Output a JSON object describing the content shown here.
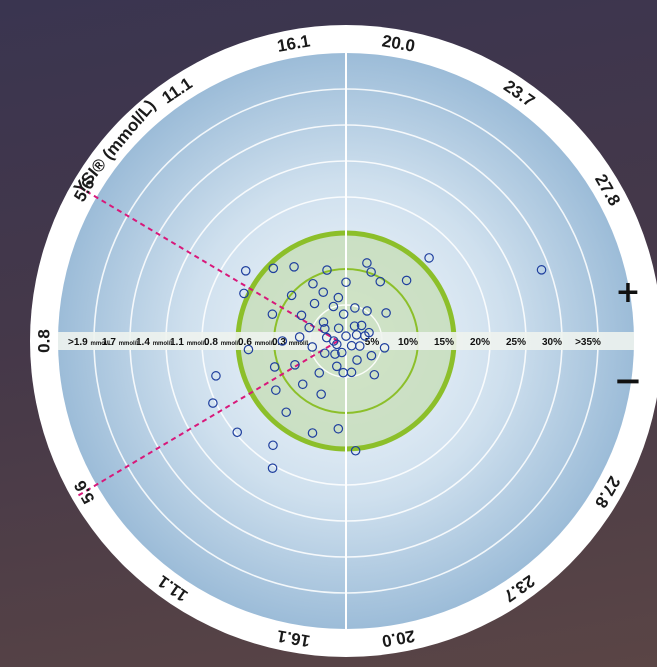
{
  "chart_data": {
    "type": "scatter",
    "title": "",
    "axis_title": "YSI® (mmol/L)",
    "ring_labels": [
      {
        "text": "0.8",
        "angle": 180
      },
      {
        "text": "5.6",
        "angle": 150
      },
      {
        "text": "11.1",
        "angle": 124
      },
      {
        "text": "16.1",
        "angle": 100
      },
      {
        "text": "20.0",
        "angle": 80
      },
      {
        "text": "23.7",
        "angle": 55
      },
      {
        "text": "27.8",
        "angle": 30
      },
      {
        "text": "5.6",
        "angle": 210
      },
      {
        "text": "11.1",
        "angle": 235
      },
      {
        "text": "16.1",
        "angle": 260
      },
      {
        "text": "20.0",
        "angle": 280
      },
      {
        "text": "23.7",
        "angle": 305
      },
      {
        "text": "27.8",
        "angle": 330
      }
    ],
    "left_scale": [
      {
        "value": ">1.9",
        "unit": "mmol/L"
      },
      {
        "value": "1.7",
        "unit": "mmol/L"
      },
      {
        "value": "1.4",
        "unit": "mmol/L"
      },
      {
        "value": "1.1",
        "unit": "mmol/L"
      },
      {
        "value": "0.8",
        "unit": "mmol/L"
      },
      {
        "value": "0.6",
        "unit": "mmol/L"
      },
      {
        "value": "0.3",
        "unit": "mmol/L"
      }
    ],
    "right_scale": [
      "5%",
      "10%",
      "15%",
      "20%",
      "25%",
      "30%",
      ">35%"
    ],
    "signs": {
      "plus": "+",
      "minus": "−"
    },
    "ring_count": 8,
    "acceptance_zone_ring": 3,
    "inner_zone_ring": 2,
    "boundary_angles": [
      150,
      210
    ],
    "ring_colors": {
      "outer": "#ffffff",
      "field": "#a9c6df",
      "zone": "#c4dcb4",
      "zone_border": "#8cbf2a",
      "point": "#1f3f9e",
      "dash": "#d8187a"
    },
    "points": [
      {
        "r": 0.02,
        "a": 90
      },
      {
        "r": 0.05,
        "a": 30
      },
      {
        "r": 0.04,
        "a": 200
      },
      {
        "r": 0.03,
        "a": 320
      },
      {
        "r": 0.06,
        "a": 120
      },
      {
        "r": 0.05,
        "a": 250
      },
      {
        "r": 0.07,
        "a": 60
      },
      {
        "r": 0.08,
        "a": 170
      },
      {
        "r": 0.09,
        "a": 300
      },
      {
        "r": 0.1,
        "a": 20
      },
      {
        "r": 0.06,
        "a": 340
      },
      {
        "r": 0.11,
        "a": 95
      },
      {
        "r": 0.12,
        "a": 140
      },
      {
        "r": 0.1,
        "a": 210
      },
      {
        "r": 0.13,
        "a": 265
      },
      {
        "r": 0.09,
        "a": 45
      },
      {
        "r": 0.14,
        "a": 75
      },
      {
        "r": 0.15,
        "a": 110
      },
      {
        "r": 0.16,
        "a": 160
      },
      {
        "r": 0.14,
        "a": 190
      },
      {
        "r": 0.17,
        "a": 230
      },
      {
        "r": 0.13,
        "a": 280
      },
      {
        "r": 0.18,
        "a": 100
      },
      {
        "r": 0.2,
        "a": 130
      },
      {
        "r": 0.22,
        "a": 115
      },
      {
        "r": 0.21,
        "a": 150
      },
      {
        "r": 0.19,
        "a": 175
      },
      {
        "r": 0.23,
        "a": 205
      },
      {
        "r": 0.25,
        "a": 225
      },
      {
        "r": 0.24,
        "a": 245
      },
      {
        "r": 0.27,
        "a": 120
      },
      {
        "r": 0.3,
        "a": 105
      },
      {
        "r": 0.29,
        "a": 140
      },
      {
        "r": 0.32,
        "a": 160
      },
      {
        "r": 0.31,
        "a": 200
      },
      {
        "r": 0.35,
        "a": 215
      },
      {
        "r": 0.38,
        "a": 230
      },
      {
        "r": 0.4,
        "a": 250
      },
      {
        "r": 0.36,
        "a": 265
      },
      {
        "r": 0.42,
        "a": 135
      },
      {
        "r": 0.46,
        "a": 155
      },
      {
        "r": 0.5,
        "a": 145
      },
      {
        "r": 0.55,
        "a": 195
      },
      {
        "r": 0.6,
        "a": 205
      },
      {
        "r": 0.58,
        "a": 220
      },
      {
        "r": 0.45,
        "a": 275
      },
      {
        "r": 0.33,
        "a": 75
      },
      {
        "r": 0.28,
        "a": 60
      },
      {
        "r": 0.2,
        "a": 35
      },
      {
        "r": 0.35,
        "a": 45
      },
      {
        "r": 0.08,
        "a": 15
      },
      {
        "r": 0.12,
        "a": 330
      },
      {
        "r": 0.16,
        "a": 350
      },
      {
        "r": 0.05,
        "a": 180
      },
      {
        "r": 0.11,
        "a": 250
      },
      {
        "r": 0.26,
        "a": 180
      },
      {
        "r": 0.18,
        "a": 310
      },
      {
        "r": 0.48,
        "a": 45
      },
      {
        "r": 0.85,
        "a": 20
      },
      {
        "r": 0.6,
        "a": 240
      },
      {
        "r": 0.52,
        "a": 235
      },
      {
        "r": 0.4,
        "a": 185
      },
      {
        "r": 0.37,
        "a": 125
      },
      {
        "r": 0.24,
        "a": 90
      },
      {
        "r": 0.3,
        "a": 70
      },
      {
        "r": 0.15,
        "a": 55
      },
      {
        "r": 0.1,
        "a": 150
      },
      {
        "r": 0.07,
        "a": 230
      }
    ]
  }
}
